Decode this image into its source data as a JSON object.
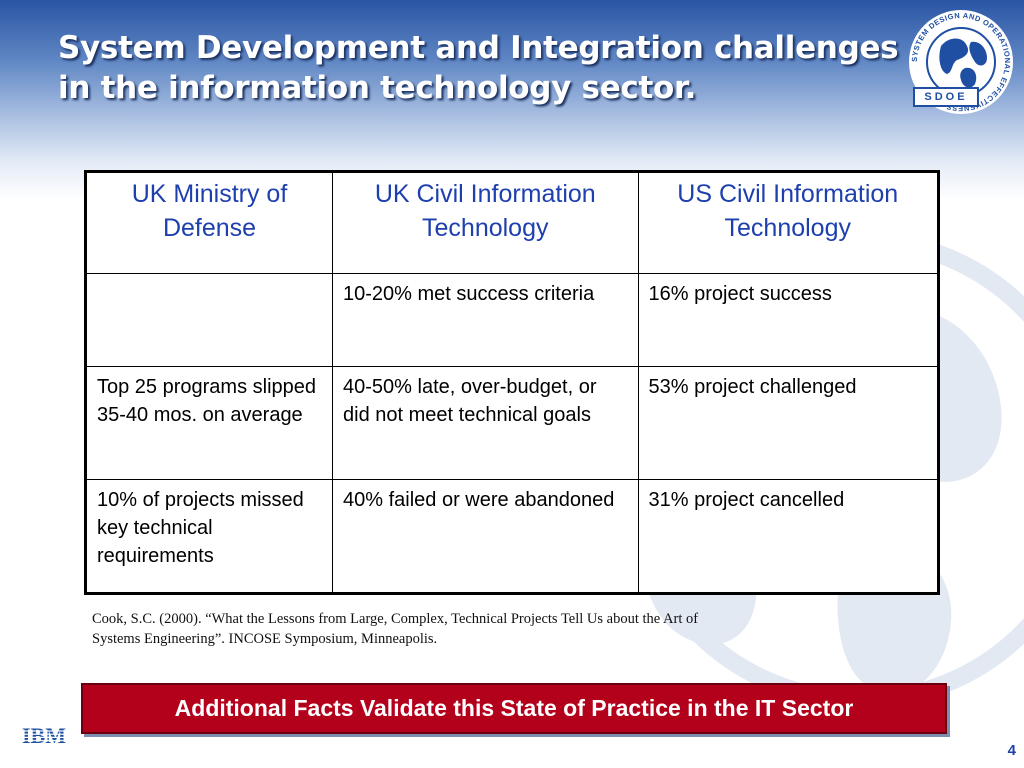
{
  "slide": {
    "title_line1": "System Development and Integration challenges",
    "title_line2": "in the information technology sector.",
    "logo_text": "SDOE",
    "logo_ring_text": "SYSTEM DESIGN AND OPERATIONAL EFFECTIVENESS",
    "table": {
      "headers": [
        "UK Ministry of Defense",
        "UK Civil Information Technology",
        "US Civil Information Technology"
      ],
      "rows": [
        [
          "",
          "10-20% met success criteria",
          "16% project success"
        ],
        [
          "Top 25 programs slipped 35-40 mos. on average",
          "40-50% late, over-budget, or did not meet technical goals",
          "53% project challenged"
        ],
        [
          "10% of projects missed key technical requirements",
          "40% failed or were abandoned",
          "31% project cancelled"
        ]
      ]
    },
    "citation_line1": "Cook, S.C. (2000). “What the Lessons from Large, Complex, Technical Projects Tell Us about the Art of",
    "citation_line2": "Systems Engineering”.  INCOSE Symposium, Minneapolis.",
    "banner": "Additional Facts Validate this State of Practice in the IT Sector",
    "brand": "IBM",
    "page_number": "4"
  },
  "colors": {
    "header_text": "#1e3fae",
    "banner_bg": "#b3001b",
    "title_gradient_top": "#2a55a3"
  }
}
